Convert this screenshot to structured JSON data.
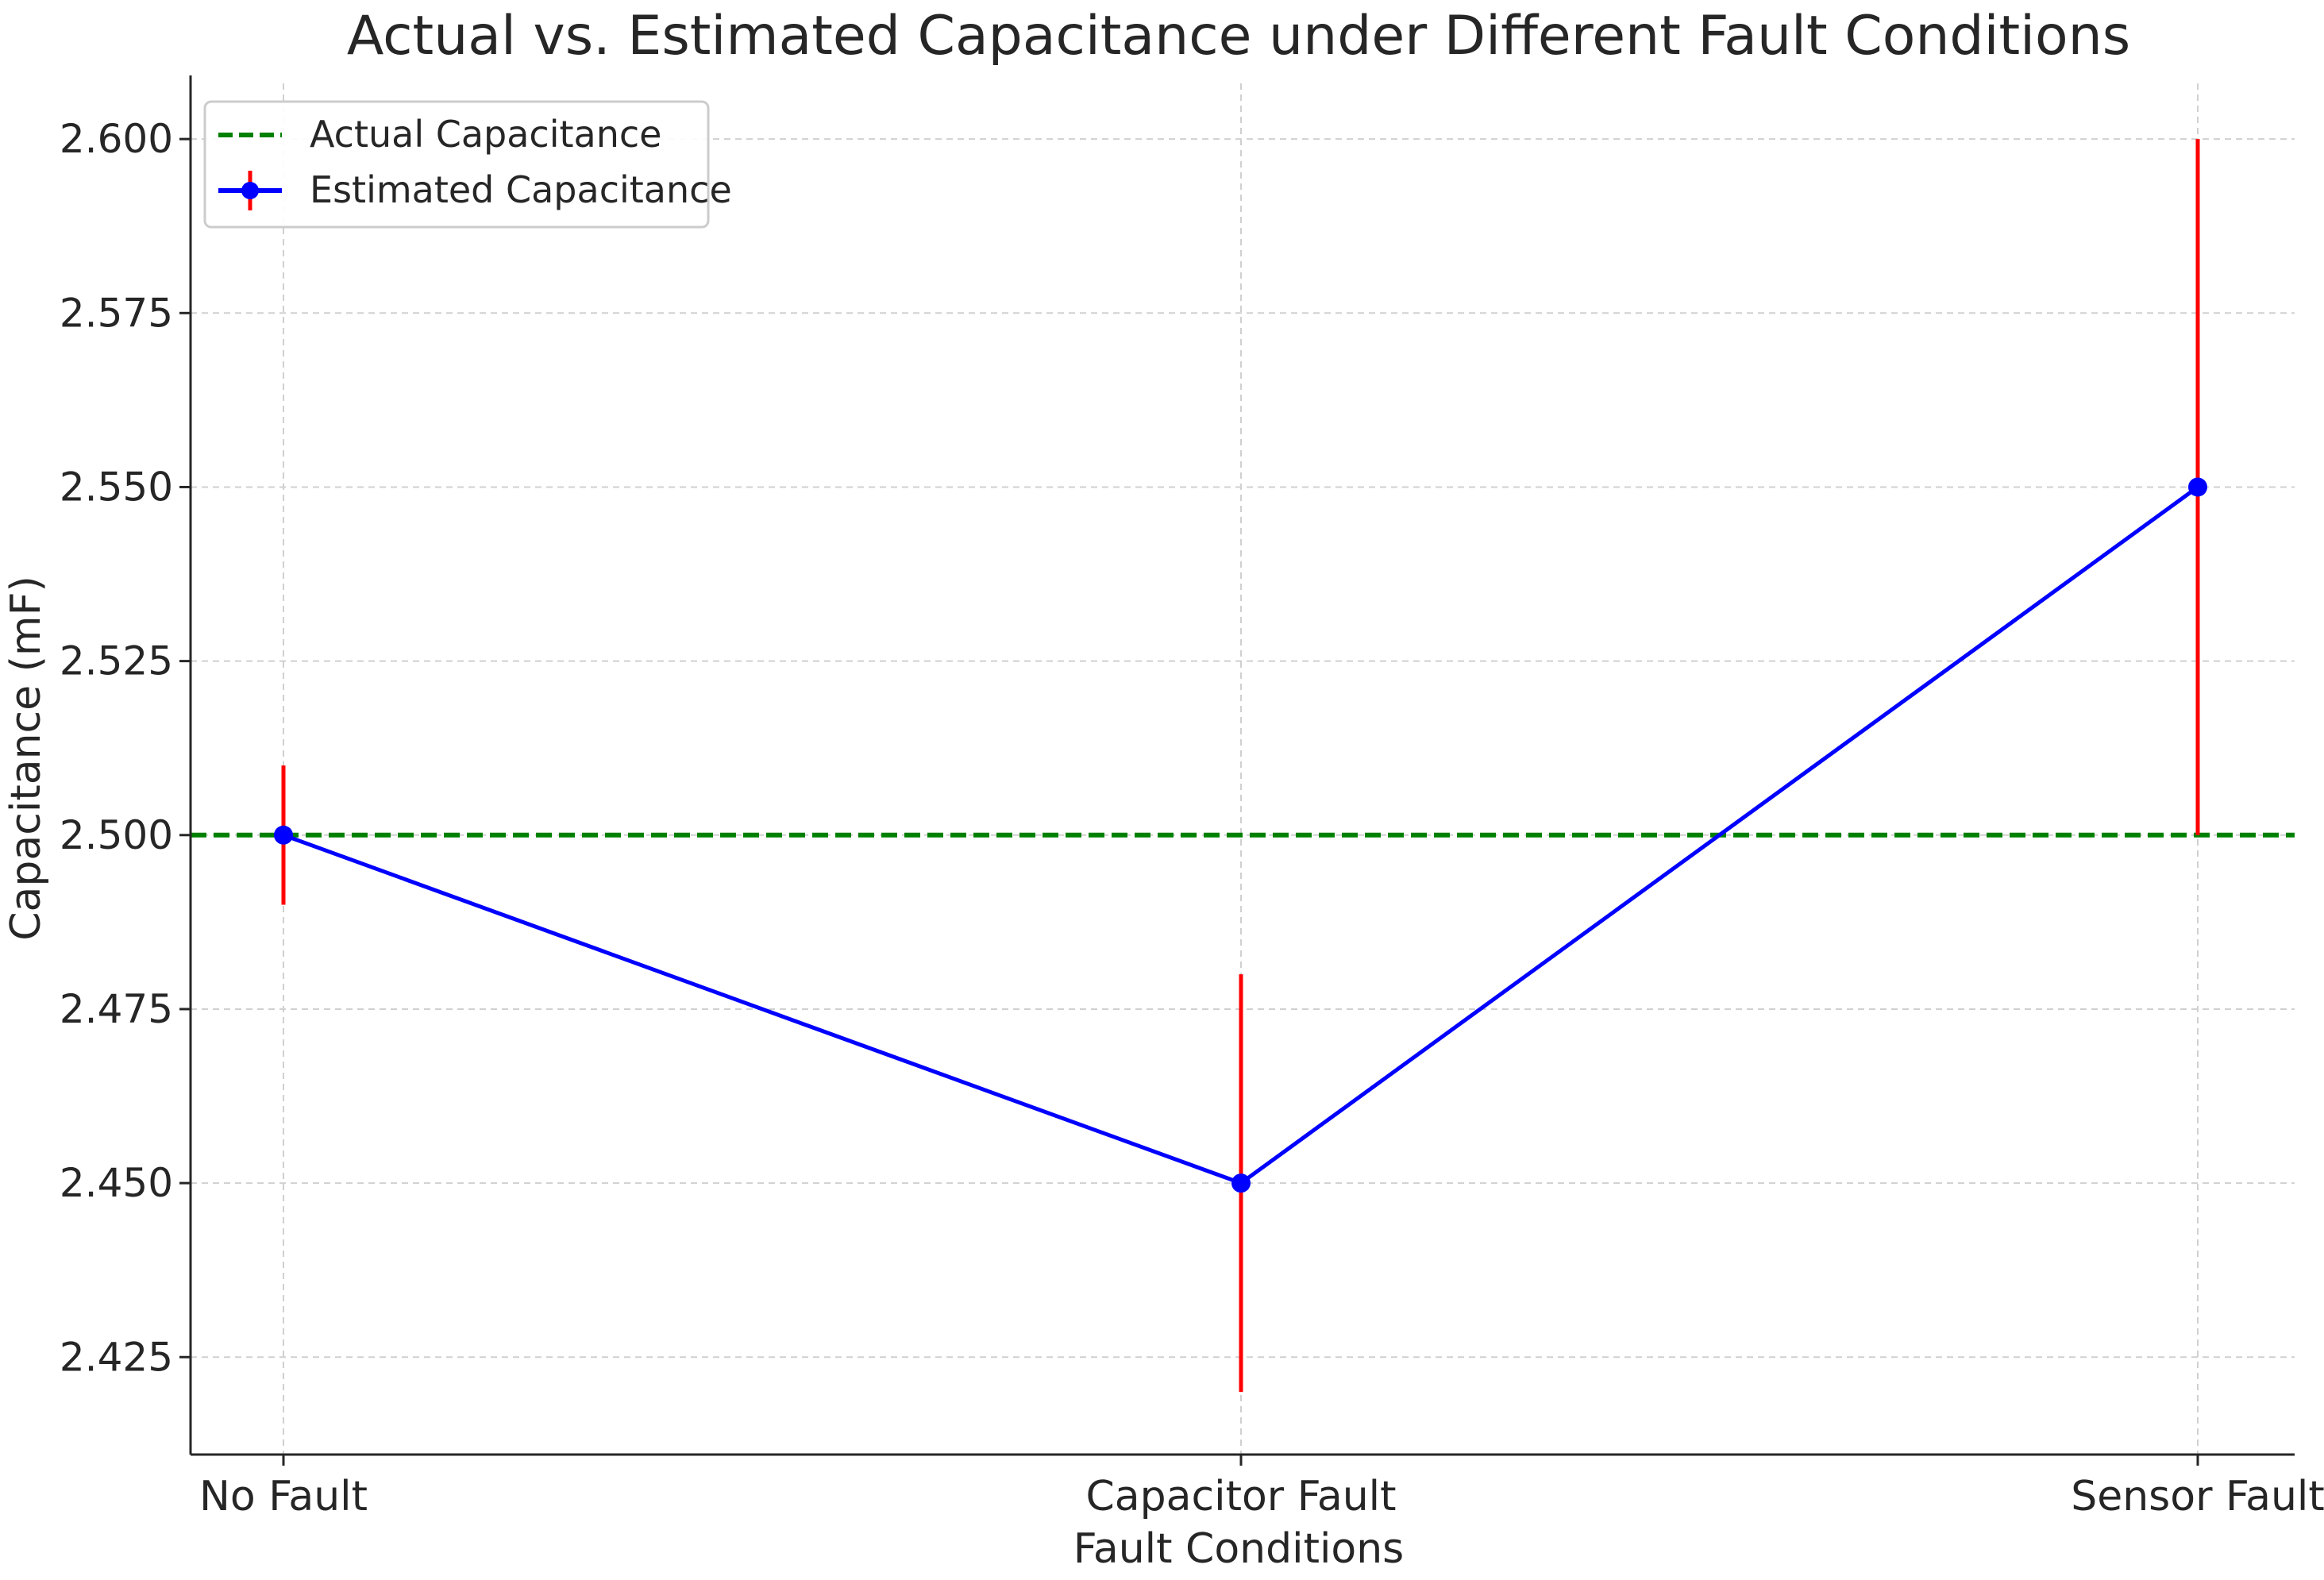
{
  "chart_data": {
    "type": "line",
    "title": "Actual vs. Estimated Capacitance under Different Fault Conditions",
    "xlabel": "Fault Conditions",
    "ylabel": "Capacitance (mF)",
    "categories": [
      "No Fault",
      "Capacitor Fault",
      "Sensor Fault"
    ],
    "ylim": [
      2.411,
      2.608
    ],
    "yticks": [
      2.425,
      2.45,
      2.475,
      2.5,
      2.525,
      2.55,
      2.575,
      2.6
    ],
    "ytick_labels": [
      "2.425",
      "2.450",
      "2.475",
      "2.500",
      "2.525",
      "2.550",
      "2.575",
      "2.600"
    ],
    "grid": true,
    "legend_position": "upper-left",
    "reference_line": {
      "name": "Actual Capacitance",
      "value": 2.5,
      "color": "#008000",
      "style": "dashed"
    },
    "series": [
      {
        "name": "Estimated Capacitance",
        "values": [
          2.5,
          2.45,
          2.55
        ],
        "error_lower": [
          0.01,
          0.03,
          0.05
        ],
        "error_upper": [
          0.01,
          0.03,
          0.05
        ],
        "color": "#0000ff",
        "error_color": "#ff0000",
        "marker": "circle"
      }
    ]
  }
}
